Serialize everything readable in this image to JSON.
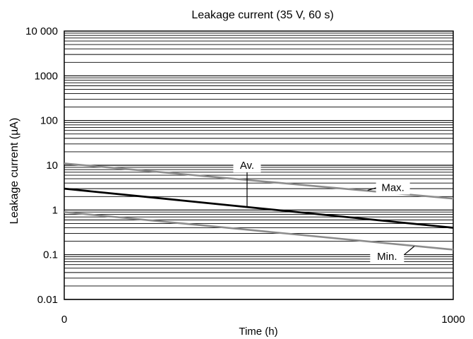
{
  "chart_data": {
    "type": "line",
    "title": "Leakage current (35 V, 60 s)",
    "xlabel": "Time (h)",
    "ylabel": "Leakage current (µA)",
    "x_scale": "linear",
    "y_scale": "log",
    "xlim": [
      0,
      1000
    ],
    "ylim": [
      0.01,
      10000
    ],
    "x_ticks": [
      {
        "value": 0,
        "label": "0"
      },
      {
        "value": 1000,
        "label": "1000"
      }
    ],
    "y_ticks": [
      {
        "value": 0.01,
        "label": "0.01"
      },
      {
        "value": 0.1,
        "label": "0.1"
      },
      {
        "value": 1,
        "label": "1"
      },
      {
        "value": 10,
        "label": "10"
      },
      {
        "value": 100,
        "label": "100"
      },
      {
        "value": 1000,
        "label": "1000"
      },
      {
        "value": 10000,
        "label": "10 000"
      }
    ],
    "grid": true,
    "series": [
      {
        "name": "Max.",
        "x": [
          0,
          1000
        ],
        "y": [
          11,
          1.8
        ],
        "color": "#8c8c8c"
      },
      {
        "name": "Av.",
        "x": [
          0,
          1000
        ],
        "y": [
          3,
          0.4
        ],
        "color": "#000000"
      },
      {
        "name": "Min.",
        "x": [
          0,
          1000
        ],
        "y": [
          0.9,
          0.13
        ],
        "color": "#8c8c8c"
      }
    ],
    "annotations": [
      {
        "text": "Av.",
        "series": "Av.",
        "label_x": 470,
        "label_y": 10,
        "anchor_x": 470,
        "anchor_y": 1.2
      },
      {
        "text": "Max.",
        "series": "Max.",
        "label_x": 845,
        "label_y": 3.2,
        "anchor_x": 780,
        "anchor_y": 2.75
      },
      {
        "text": "Min.",
        "series": "Min.",
        "label_x": 830,
        "label_y": 0.092,
        "anchor_x": 900,
        "anchor_y": 0.155
      }
    ]
  }
}
